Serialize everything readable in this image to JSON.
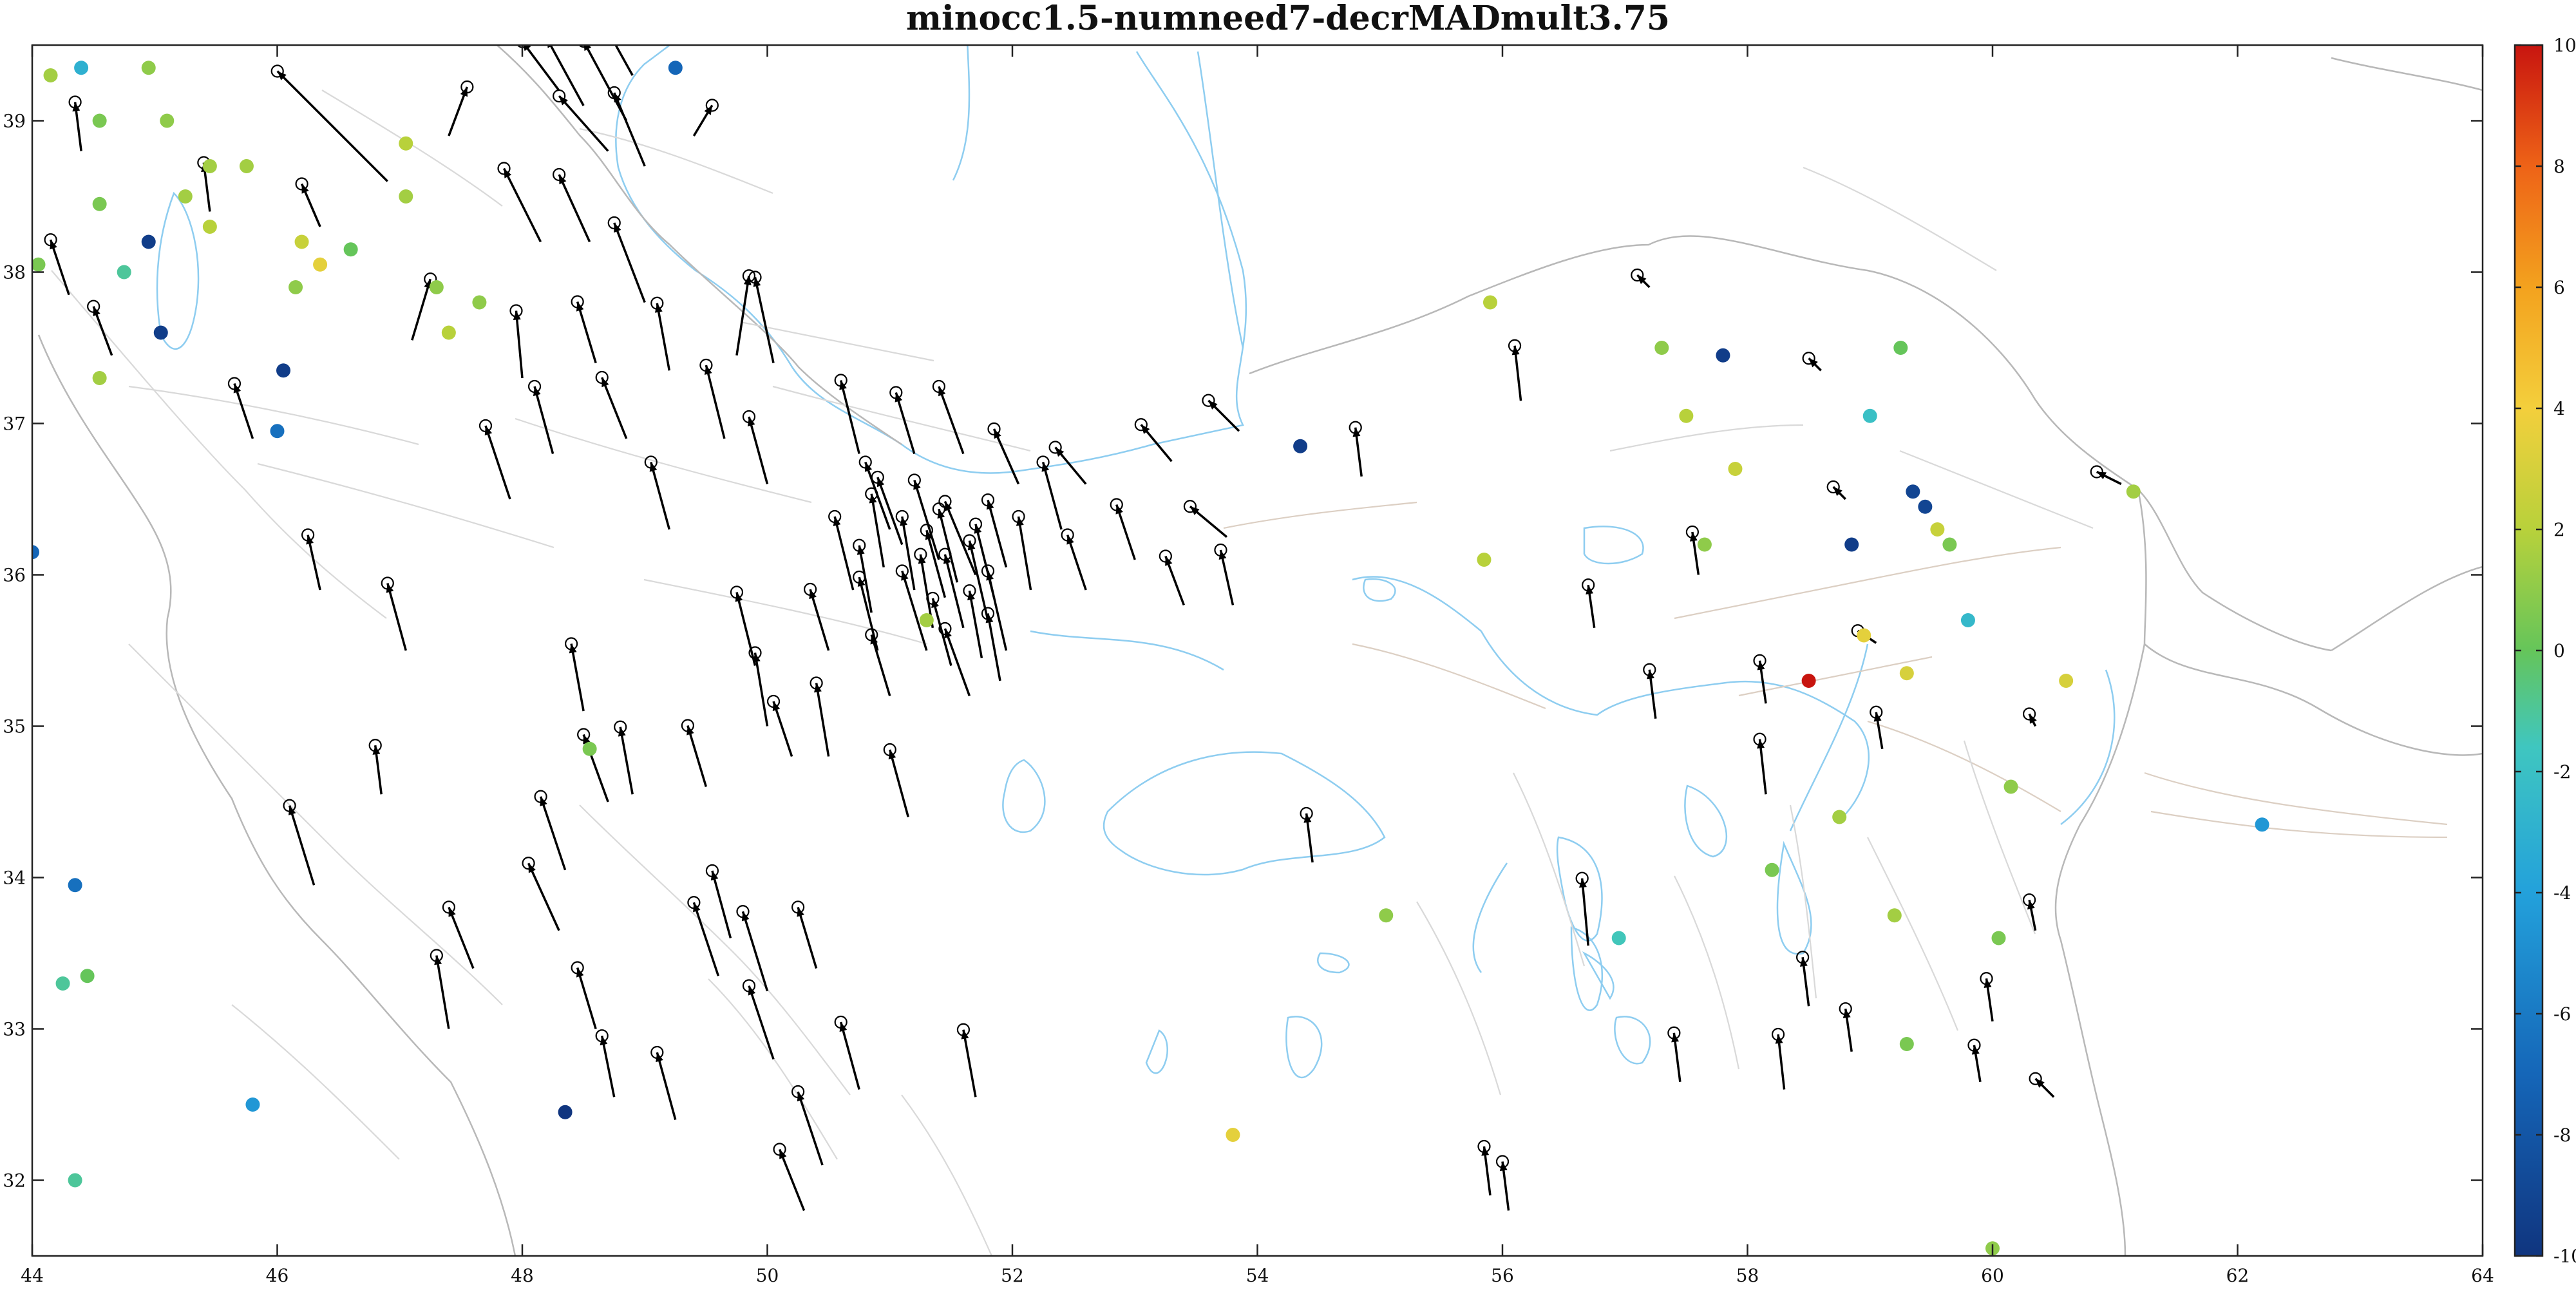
{
  "chart_data": {
    "type": "scatter",
    "title": "minocc1.5-numneed7-decrMADmult3.75",
    "xlabel": "",
    "ylabel": "",
    "xlim": [
      44,
      64
    ],
    "ylim": [
      31.5,
      39.5
    ],
    "xticks": [
      44,
      46,
      48,
      50,
      52,
      54,
      56,
      58,
      60,
      62,
      64
    ],
    "yticks": [
      32,
      33,
      34,
      35,
      36,
      37,
      38,
      39
    ],
    "grid": false,
    "colorbar": {
      "position": "right",
      "colormap": "jet",
      "range": [
        -10,
        10
      ],
      "ticks": [
        -10,
        -8,
        -6,
        -4,
        -2,
        0,
        2,
        4,
        6,
        8,
        10
      ]
    },
    "colored_stations": [
      {
        "x": 44.15,
        "y": 39.3,
        "v": 1.5
      },
      {
        "x": 44.4,
        "y": 39.35,
        "v": -3.0
      },
      {
        "x": 44.55,
        "y": 39.0,
        "v": 0.5
      },
      {
        "x": 44.05,
        "y": 38.05,
        "v": 0.5
      },
      {
        "x": 44.55,
        "y": 38.45,
        "v": 0.5
      },
      {
        "x": 44.75,
        "y": 38.0,
        "v": -1.0
      },
      {
        "x": 44.95,
        "y": 38.2,
        "v": -9.5
      },
      {
        "x": 45.05,
        "y": 37.6,
        "v": -9.5
      },
      {
        "x": 44.55,
        "y": 37.3,
        "v": 1.5
      },
      {
        "x": 44.95,
        "y": 39.35,
        "v": 1.0
      },
      {
        "x": 45.1,
        "y": 39.0,
        "v": 1.0
      },
      {
        "x": 45.25,
        "y": 38.5,
        "v": 1.5
      },
      {
        "x": 45.45,
        "y": 38.3,
        "v": 2.0
      },
      {
        "x": 45.45,
        "y": 38.7,
        "v": 1.5
      },
      {
        "x": 45.75,
        "y": 38.7,
        "v": 1.5
      },
      {
        "x": 46.15,
        "y": 37.9,
        "v": 1.0
      },
      {
        "x": 46.2,
        "y": 38.2,
        "v": 2.5
      },
      {
        "x": 46.35,
        "y": 38.05,
        "v": 3.5
      },
      {
        "x": 46.05,
        "y": 37.35,
        "v": -9.5
      },
      {
        "x": 46.0,
        "y": 36.95,
        "v": -6.5
      },
      {
        "x": 46.6,
        "y": 38.15,
        "v": 0.0
      },
      {
        "x": 47.05,
        "y": 38.85,
        "v": 2.0
      },
      {
        "x": 47.05,
        "y": 38.5,
        "v": 1.5
      },
      {
        "x": 47.3,
        "y": 37.9,
        "v": 1.0
      },
      {
        "x": 47.4,
        "y": 37.6,
        "v": 2.0
      },
      {
        "x": 47.65,
        "y": 37.8,
        "v": 1.0
      },
      {
        "x": 49.25,
        "y": 39.35,
        "v": -7.0
      },
      {
        "x": 44.0,
        "y": 36.15,
        "v": -7.0
      },
      {
        "x": 48.55,
        "y": 34.85,
        "v": 0.5
      },
      {
        "x": 44.35,
        "y": 33.95,
        "v": -6.5
      },
      {
        "x": 44.25,
        "y": 33.3,
        "v": -1.0
      },
      {
        "x": 44.45,
        "y": 33.35,
        "v": 0.0
      },
      {
        "x": 44.35,
        "y": 32.0,
        "v": -1.0
      },
      {
        "x": 45.8,
        "y": 32.5,
        "v": -4.5
      },
      {
        "x": 48.35,
        "y": 32.45,
        "v": -10.0
      },
      {
        "x": 51.3,
        "y": 35.7,
        "v": 1.5
      },
      {
        "x": 53.8,
        "y": 32.3,
        "v": 3.5
      },
      {
        "x": 54.35,
        "y": 36.85,
        "v": -9.5
      },
      {
        "x": 55.05,
        "y": 33.75,
        "v": 1.0
      },
      {
        "x": 55.9,
        "y": 37.8,
        "v": 2.0
      },
      {
        "x": 55.85,
        "y": 36.1,
        "v": 2.0
      },
      {
        "x": 56.95,
        "y": 33.6,
        "v": -1.5
      },
      {
        "x": 57.3,
        "y": 37.5,
        "v": 1.0
      },
      {
        "x": 57.5,
        "y": 37.05,
        "v": 2.0
      },
      {
        "x": 57.65,
        "y": 36.2,
        "v": 1.0
      },
      {
        "x": 57.9,
        "y": 36.7,
        "v": 2.5
      },
      {
        "x": 57.8,
        "y": 37.45,
        "v": -9.5
      },
      {
        "x": 58.2,
        "y": 34.05,
        "v": 0.5
      },
      {
        "x": 58.5,
        "y": 35.3,
        "v": 10.0
      },
      {
        "x": 58.75,
        "y": 34.4,
        "v": 1.5
      },
      {
        "x": 58.85,
        "y": 36.2,
        "v": -9.5
      },
      {
        "x": 58.95,
        "y": 35.6,
        "v": 3.5
      },
      {
        "x": 59.0,
        "y": 37.05,
        "v": -2.0
      },
      {
        "x": 59.2,
        "y": 33.75,
        "v": 1.5
      },
      {
        "x": 59.25,
        "y": 37.5,
        "v": 0.0
      },
      {
        "x": 59.3,
        "y": 35.35,
        "v": 3.0
      },
      {
        "x": 59.3,
        "y": 32.9,
        "v": 0.5
      },
      {
        "x": 59.35,
        "y": 36.55,
        "v": -9.0
      },
      {
        "x": 59.45,
        "y": 36.45,
        "v": -9.0
      },
      {
        "x": 59.55,
        "y": 36.3,
        "v": 2.5
      },
      {
        "x": 59.65,
        "y": 36.2,
        "v": 0.5
      },
      {
        "x": 59.8,
        "y": 35.7,
        "v": -2.5
      },
      {
        "x": 60.05,
        "y": 33.6,
        "v": 0.5
      },
      {
        "x": 60.15,
        "y": 34.6,
        "v": 1.0
      },
      {
        "x": 60.0,
        "y": 31.55,
        "v": 1.0
      },
      {
        "x": 60.6,
        "y": 35.3,
        "v": 3.0
      },
      {
        "x": 61.15,
        "y": 36.55,
        "v": 1.5
      },
      {
        "x": 62.2,
        "y": 34.35,
        "v": -4.5
      }
    ],
    "vector_sites": [
      [
        46.9,
        38.6,
        -1.8,
        1.8
      ],
      [
        47.4,
        38.9,
        0.3,
        0.8
      ],
      [
        48.3,
        39.2,
        -0.6,
        0.8
      ],
      [
        48.5,
        39.1,
        -0.6,
        1.1
      ],
      [
        48.7,
        38.8,
        -0.8,
        0.9
      ],
      [
        48.85,
        39.0,
        -0.7,
        1.3
      ],
      [
        49.0,
        38.7,
        -0.5,
        1.2
      ],
      [
        49.4,
        38.9,
        0.3,
        0.5
      ],
      [
        48.9,
        39.3,
        -0.5,
        0.9
      ],
      [
        48.15,
        38.2,
        -0.6,
        1.2
      ],
      [
        48.55,
        38.2,
        -0.5,
        1.1
      ],
      [
        49.0,
        37.8,
        -0.5,
        1.3
      ],
      [
        47.1,
        37.55,
        0.3,
        1.0
      ],
      [
        50.05,
        37.4,
        -0.3,
        1.4
      ],
      [
        49.75,
        37.45,
        0.2,
        1.3
      ],
      [
        49.2,
        37.35,
        -0.2,
        1.1
      ],
      [
        48.6,
        37.4,
        -0.3,
        1.0
      ],
      [
        48.0,
        37.3,
        -0.1,
        1.1
      ],
      [
        49.65,
        36.9,
        -0.3,
        1.2
      ],
      [
        48.85,
        36.9,
        -0.4,
        1.0
      ],
      [
        48.25,
        36.8,
        -0.3,
        1.1
      ],
      [
        47.9,
        36.5,
        -0.4,
        1.2
      ],
      [
        49.2,
        36.3,
        -0.3,
        1.1
      ],
      [
        50.0,
        36.6,
        -0.3,
        1.1
      ],
      [
        50.75,
        36.8,
        -0.3,
        1.2
      ],
      [
        51.2,
        36.8,
        -0.3,
        1.0
      ],
      [
        51.6,
        36.8,
        -0.4,
        1.1
      ],
      [
        52.05,
        36.6,
        -0.4,
        0.9
      ],
      [
        52.6,
        36.6,
        -0.5,
        0.6
      ],
      [
        53.3,
        36.75,
        -0.5,
        0.6
      ],
      [
        53.85,
        36.95,
        -0.5,
        0.5
      ],
      [
        54.85,
        36.65,
        -0.1,
        0.8
      ],
      [
        53.75,
        36.25,
        -0.6,
        0.5
      ],
      [
        52.4,
        36.3,
        -0.3,
        1.1
      ],
      [
        51.0,
        36.3,
        -0.4,
        1.1
      ],
      [
        50.7,
        35.9,
        -0.3,
        1.2
      ],
      [
        51.4,
        36.1,
        -0.4,
        1.3
      ],
      [
        51.8,
        35.7,
        -0.3,
        1.3
      ],
      [
        52.15,
        35.9,
        -0.2,
        1.2
      ],
      [
        52.6,
        35.9,
        -0.3,
        0.9
      ],
      [
        53.4,
        35.8,
        -0.3,
        0.8
      ],
      [
        53.8,
        35.8,
        -0.2,
        0.9
      ],
      [
        53.0,
        36.1,
        -0.3,
        0.9
      ],
      [
        51.7,
        36.0,
        -0.5,
        1.2
      ],
      [
        51.3,
        35.5,
        -0.4,
        1.3
      ],
      [
        50.9,
        35.5,
        -0.3,
        1.2
      ],
      [
        51.0,
        35.2,
        -0.3,
        1.0
      ],
      [
        51.95,
        35.5,
        -0.3,
        1.3
      ],
      [
        51.65,
        35.2,
        -0.4,
        1.1
      ],
      [
        50.5,
        35.5,
        -0.3,
        1.0
      ],
      [
        49.9,
        35.4,
        -0.3,
        1.2
      ],
      [
        50.0,
        35.0,
        -0.2,
        1.2
      ],
      [
        50.2,
        34.8,
        -0.3,
        0.9
      ],
      [
        50.5,
        34.8,
        -0.2,
        1.2
      ],
      [
        51.15,
        34.4,
        -0.3,
        1.1
      ],
      [
        49.5,
        34.6,
        -0.3,
        1.0
      ],
      [
        48.9,
        34.55,
        -0.2,
        1.1
      ],
      [
        48.5,
        35.1,
        -0.2,
        1.1
      ],
      [
        47.05,
        35.5,
        -0.3,
        1.1
      ],
      [
        46.85,
        34.55,
        -0.1,
        0.8
      ],
      [
        46.3,
        33.95,
        -0.4,
        1.3
      ],
      [
        47.6,
        33.4,
        -0.4,
        1.0
      ],
      [
        48.35,
        34.05,
        -0.4,
        1.2
      ],
      [
        48.3,
        33.65,
        -0.5,
        1.1
      ],
      [
        48.7,
        34.5,
        -0.4,
        1.1
      ],
      [
        49.7,
        33.6,
        -0.3,
        1.1
      ],
      [
        49.6,
        33.35,
        -0.4,
        1.2
      ],
      [
        50.4,
        33.4,
        -0.3,
        1.0
      ],
      [
        50.0,
        33.25,
        -0.4,
        1.3
      ],
      [
        50.05,
        32.8,
        -0.4,
        1.2
      ],
      [
        50.75,
        32.6,
        -0.3,
        1.1
      ],
      [
        51.7,
        32.55,
        -0.2,
        1.1
      ],
      [
        50.45,
        32.1,
        -0.4,
        1.2
      ],
      [
        50.3,
        31.8,
        -0.4,
        1.0
      ],
      [
        47.4,
        33.0,
        -0.2,
        1.2
      ],
      [
        48.6,
        33.0,
        -0.3,
        1.0
      ],
      [
        48.75,
        32.55,
        -0.2,
        1.0
      ],
      [
        49.25,
        32.4,
        -0.3,
        1.1
      ],
      [
        55.9,
        31.9,
        -0.1,
        0.8
      ],
      [
        56.05,
        31.8,
        -0.1,
        0.8
      ],
      [
        56.7,
        33.55,
        -0.1,
        1.1
      ],
      [
        57.45,
        32.65,
        -0.1,
        0.8
      ],
      [
        58.3,
        32.6,
        -0.1,
        0.9
      ],
      [
        58.5,
        33.15,
        -0.1,
        0.8
      ],
      [
        58.85,
        32.85,
        -0.1,
        0.7
      ],
      [
        60.0,
        33.05,
        -0.1,
        0.7
      ],
      [
        59.9,
        32.65,
        -0.1,
        0.6
      ],
      [
        60.35,
        33.65,
        -0.1,
        0.5
      ],
      [
        60.5,
        32.55,
        -0.3,
        0.3
      ],
      [
        54.45,
        34.1,
        -0.1,
        0.8
      ],
      [
        56.75,
        35.65,
        -0.1,
        0.7
      ],
      [
        57.25,
        35.05,
        -0.1,
        0.8
      ],
      [
        58.15,
        34.55,
        -0.1,
        0.9
      ],
      [
        57.6,
        36.0,
        -0.1,
        0.7
      ],
      [
        56.15,
        37.15,
        -0.1,
        0.9
      ],
      [
        58.15,
        35.15,
        -0.1,
        0.7
      ],
      [
        59.1,
        34.85,
        -0.1,
        0.6
      ],
      [
        60.35,
        35.0,
        -0.1,
        0.2
      ],
      [
        59.05,
        35.55,
        -0.3,
        0.2
      ],
      [
        58.8,
        36.5,
        -0.2,
        0.2
      ],
      [
        58.6,
        37.35,
        -0.2,
        0.2
      ],
      [
        57.2,
        37.9,
        -0.2,
        0.2
      ],
      [
        61.05,
        36.6,
        -0.4,
        0.2
      ],
      [
        45.45,
        38.4,
        -0.1,
        0.8
      ],
      [
        44.4,
        38.8,
        -0.1,
        0.8
      ],
      [
        44.3,
        37.85,
        -0.3,
        0.9
      ],
      [
        45.8,
        36.9,
        -0.3,
        0.9
      ],
      [
        46.35,
        35.9,
        -0.2,
        0.9
      ],
      [
        44.65,
        37.45,
        -0.3,
        0.8
      ],
      [
        46.35,
        38.3,
        -0.3,
        0.7
      ],
      [
        50.95,
        36.05,
        -0.2,
        1.2
      ],
      [
        51.2,
        35.9,
        -0.2,
        1.2
      ],
      [
        51.45,
        35.85,
        -0.3,
        1.1
      ],
      [
        51.55,
        35.95,
        -0.3,
        1.2
      ],
      [
        51.85,
        35.85,
        -0.3,
        1.2
      ],
      [
        51.95,
        36.05,
        -0.3,
        1.1
      ],
      [
        51.1,
        36.2,
        -0.4,
        1.1
      ],
      [
        50.85,
        35.75,
        -0.2,
        1.1
      ],
      [
        51.35,
        35.65,
        -0.2,
        1.2
      ],
      [
        51.6,
        35.65,
        -0.3,
        1.2
      ],
      [
        51.75,
        35.45,
        -0.2,
        1.1
      ],
      [
        51.5,
        35.4,
        -0.3,
        1.1
      ],
      [
        51.9,
        35.3,
        -0.2,
        1.1
      ]
    ]
  }
}
